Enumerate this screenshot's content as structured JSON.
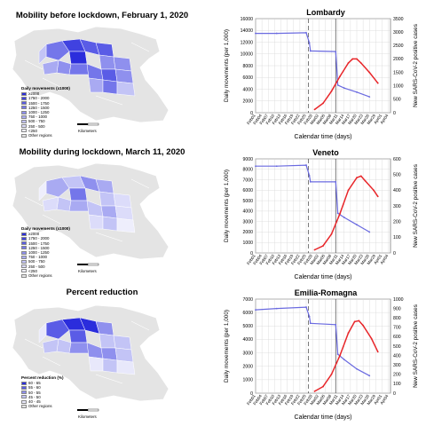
{
  "maps": [
    {
      "title": "Mobility before lockdown, February 1, 2020",
      "legend_title": "Daily movements (x1000)",
      "legend_items": [
        "≥2000",
        "1750 - 2000",
        "1500 - 1750",
        "1250 - 1500",
        "1000 - 1250",
        "750 - 1000",
        "500 - 750",
        "250 - 500",
        "<250",
        "Other regions"
      ],
      "legend_colors": [
        "#2b2ddc",
        "#4042e0",
        "#5a5ce6",
        "#7476ea",
        "#8f90ee",
        "#a9aaf2",
        "#c3c4f6",
        "#dcdcfa",
        "#eeeefc",
        "#e4e4e4"
      ],
      "scale_label": "Kilometers",
      "scale_ticks": [
        "0",
        "100"
      ]
    },
    {
      "title": "Mobility during lockdown, March 11, 2020",
      "legend_title": "Daily movements (x1000)",
      "legend_items": [
        "≥2000",
        "1750 - 2000",
        "1500 - 1750",
        "1250 - 1500",
        "1000 - 1250",
        "750 - 1000",
        "500 - 750",
        "250 - 500",
        "<250",
        "Other regions"
      ],
      "legend_colors": [
        "#2b2ddc",
        "#4042e0",
        "#5a5ce6",
        "#7476ea",
        "#8f90ee",
        "#a9aaf2",
        "#c3c4f6",
        "#dcdcfa",
        "#eeeefc",
        "#e4e4e4"
      ],
      "scale_label": "Kilometers",
      "scale_ticks": [
        "0",
        "100"
      ]
    },
    {
      "title": "Percent reduction",
      "legend_title": "Percent reduction (%)",
      "legend_items": [
        "60 - 65",
        "55 - 60",
        "50 - 55",
        "45 - 50",
        "40 - 45",
        "Other regions"
      ],
      "legend_colors": [
        "#2b2ddc",
        "#5a5ce6",
        "#8f90ee",
        "#c3c4f6",
        "#e8e8fb",
        "#e4e4e4"
      ],
      "scale_label": "Kilometers",
      "scale_ticks": [
        "0",
        "100"
      ]
    }
  ],
  "colors": {
    "mobility": "#6a6ae0",
    "cases": "#e8262a",
    "grid": "#d7d7d7"
  },
  "chart_data": [
    {
      "type": "line",
      "title": "Lombardy",
      "xlabel": "Calendar time (days)",
      "ylabel": "Daily movements (per 1,000)",
      "ylabel_right": "New SARS-CoV-2 positive cases",
      "x_ticks": [
        "Feb01",
        "Feb04",
        "Feb07",
        "Feb10",
        "Feb13",
        "Feb16",
        "Feb19",
        "Feb22",
        "Feb25",
        "Feb28",
        "Mar02",
        "Mar05",
        "Mar08",
        "Mar11",
        "Mar14",
        "Mar17",
        "Mar20",
        "Mar23",
        "Mar26",
        "Mar29",
        "Apr01",
        "Apr04"
      ],
      "ylim": [
        0,
        16000
      ],
      "y_ticks": [
        0,
        2000,
        4000,
        6000,
        8000,
        10000,
        12000,
        14000,
        16000
      ],
      "ylim_right": [
        0,
        3500
      ],
      "y_ticks_right": [
        0,
        500,
        1000,
        1500,
        2000,
        2500,
        3000,
        3500
      ],
      "vlines_day": [
        25,
        38
      ],
      "series": [
        {
          "name": "Daily movements",
          "axis": "left",
          "points": [
            {
              "x": 0,
              "y": 13500
            },
            {
              "x": 10,
              "y": 13500
            },
            {
              "x": 24,
              "y": 13600
            },
            {
              "x": 25.5,
              "y": 11900
            },
            {
              "x": 26,
              "y": 10500
            },
            {
              "x": 38,
              "y": 10400
            },
            {
              "x": 39,
              "y": 4700
            },
            {
              "x": 42,
              "y": 4200
            },
            {
              "x": 48,
              "y": 3500
            },
            {
              "x": 54,
              "y": 2700
            }
          ]
        },
        {
          "name": "New positive cases",
          "axis": "right",
          "points": [
            {
              "x": 28,
              "y": 120
            },
            {
              "x": 32,
              "y": 350
            },
            {
              "x": 36,
              "y": 800
            },
            {
              "x": 40,
              "y": 1350
            },
            {
              "x": 44,
              "y": 1850
            },
            {
              "x": 46,
              "y": 2000
            },
            {
              "x": 48,
              "y": 2000
            },
            {
              "x": 50,
              "y": 1850
            },
            {
              "x": 54,
              "y": 1500
            },
            {
              "x": 58,
              "y": 1100
            }
          ]
        }
      ]
    },
    {
      "type": "line",
      "title": "Veneto",
      "xlabel": "Calendar time (days)",
      "ylabel": "Daily movements (per 1,000)",
      "ylabel_right": "New SARS-CoV-2 positive cases",
      "x_ticks": [
        "Feb01",
        "Feb04",
        "Feb07",
        "Feb10",
        "Feb13",
        "Feb16",
        "Feb19",
        "Feb22",
        "Feb25",
        "Feb28",
        "Mar02",
        "Mar05",
        "Mar08",
        "Mar11",
        "Mar14",
        "Mar17",
        "Mar20",
        "Mar23",
        "Mar26",
        "Mar29",
        "Apr01",
        "Apr04"
      ],
      "ylim": [
        0,
        9000
      ],
      "y_ticks": [
        0,
        1000,
        2000,
        3000,
        4000,
        5000,
        6000,
        7000,
        8000,
        9000
      ],
      "ylim_right": [
        0,
        600
      ],
      "y_ticks_right": [
        0,
        100,
        200,
        300,
        400,
        500,
        600
      ],
      "vlines_day": [
        25,
        38
      ],
      "series": [
        {
          "name": "Daily movements",
          "axis": "left",
          "points": [
            {
              "x": 0,
              "y": 8300
            },
            {
              "x": 10,
              "y": 8300
            },
            {
              "x": 24,
              "y": 8400
            },
            {
              "x": 25.5,
              "y": 7400
            },
            {
              "x": 26,
              "y": 6800
            },
            {
              "x": 38,
              "y": 6800
            },
            {
              "x": 39,
              "y": 3800
            },
            {
              "x": 42,
              "y": 3400
            },
            {
              "x": 48,
              "y": 2700
            },
            {
              "x": 54,
              "y": 2000
            }
          ]
        },
        {
          "name": "New positive cases",
          "axis": "right",
          "points": [
            {
              "x": 28,
              "y": 20
            },
            {
              "x": 32,
              "y": 45
            },
            {
              "x": 36,
              "y": 120
            },
            {
              "x": 40,
              "y": 250
            },
            {
              "x": 44,
              "y": 400
            },
            {
              "x": 48,
              "y": 480
            },
            {
              "x": 50,
              "y": 490
            },
            {
              "x": 52,
              "y": 460
            },
            {
              "x": 56,
              "y": 400
            },
            {
              "x": 58,
              "y": 360
            }
          ]
        }
      ]
    },
    {
      "type": "line",
      "title": "Emilia-Romagna",
      "xlabel": "Calendar time (days)",
      "ylabel": "Daily movements (per 1,000)",
      "ylabel_right": "New SARS-CoV-2 positive cases",
      "x_ticks": [
        "Feb01",
        "Feb04",
        "Feb07",
        "Feb10",
        "Feb13",
        "Feb16",
        "Feb19",
        "Feb22",
        "Feb25",
        "Feb28",
        "Mar02",
        "Mar05",
        "Mar08",
        "Mar11",
        "Mar14",
        "Mar17",
        "Mar20",
        "Mar23",
        "Mar26",
        "Mar29",
        "Apr01",
        "Apr04"
      ],
      "ylim": [
        0,
        7000
      ],
      "y_ticks": [
        0,
        1000,
        2000,
        3000,
        4000,
        5000,
        6000,
        7000
      ],
      "ylim_right": [
        0,
        1000
      ],
      "y_ticks_right": [
        0,
        100,
        200,
        300,
        400,
        500,
        600,
        700,
        800,
        900,
        1000
      ],
      "vlines_day": [
        25,
        38
      ],
      "series": [
        {
          "name": "Daily movements",
          "axis": "left",
          "points": [
            {
              "x": 0,
              "y": 6200
            },
            {
              "x": 10,
              "y": 6300
            },
            {
              "x": 24,
              "y": 6400
            },
            {
              "x": 25.5,
              "y": 5700
            },
            {
              "x": 26,
              "y": 5200
            },
            {
              "x": 38,
              "y": 5100
            },
            {
              "x": 39,
              "y": 2900
            },
            {
              "x": 42,
              "y": 2500
            },
            {
              "x": 48,
              "y": 1800
            },
            {
              "x": 54,
              "y": 1300
            }
          ]
        },
        {
          "name": "New positive cases",
          "axis": "right",
          "points": [
            {
              "x": 28,
              "y": 20
            },
            {
              "x": 32,
              "y": 70
            },
            {
              "x": 36,
              "y": 200
            },
            {
              "x": 40,
              "y": 400
            },
            {
              "x": 44,
              "y": 640
            },
            {
              "x": 47,
              "y": 760
            },
            {
              "x": 49,
              "y": 770
            },
            {
              "x": 51,
              "y": 720
            },
            {
              "x": 55,
              "y": 580
            },
            {
              "x": 58,
              "y": 440
            }
          ]
        }
      ]
    }
  ]
}
